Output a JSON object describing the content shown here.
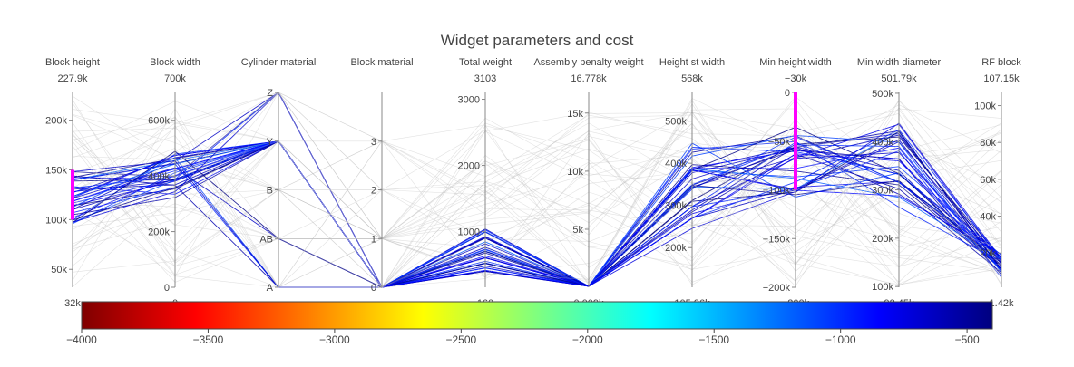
{
  "chart_data": {
    "type": "parallel-coordinates",
    "title": "Widget parameters and cost",
    "colorscale": {
      "name": "Jet (reversed)",
      "range": [
        -4000,
        -400
      ],
      "ticks": [
        -4000,
        -3500,
        -3000,
        -2500,
        -2000,
        -1500,
        -1000,
        -500
      ],
      "tick_labels": [
        "−4000",
        "−3500",
        "−3000",
        "−2500",
        "−2000",
        "−1500",
        "−1000",
        "−500"
      ],
      "stops": [
        "#7f0000",
        "#ff0000",
        "#ff7f00",
        "#ffff00",
        "#7fff7f",
        "#00ffff",
        "#007fff",
        "#0000ff",
        "#00007f"
      ]
    },
    "dimensions": [
      {
        "label": "Block height",
        "range": [
          32000,
          227900
        ],
        "range_labels": [
          "32k",
          "227.9k"
        ],
        "ticks": [
          50000,
          100000,
          150000,
          200000
        ],
        "tick_labels": [
          "50k",
          "100k",
          "150k",
          "200k"
        ],
        "constraint": [
          100000,
          150000
        ]
      },
      {
        "label": "Block width",
        "range": [
          0,
          700000
        ],
        "range_labels": [
          "0",
          "700k"
        ],
        "ticks": [
          0,
          200000,
          400000,
          600000
        ],
        "tick_labels": [
          "0",
          "200k",
          "400k",
          "600k"
        ]
      },
      {
        "label": "Cylinder material",
        "range": [
          0,
          4
        ],
        "range_labels": [
          "",
          ""
        ],
        "ticks": [
          0,
          1,
          2,
          3,
          4
        ],
        "tick_labels": [
          "A",
          "AB",
          "B",
          "Y",
          "Z"
        ]
      },
      {
        "label": "Block material",
        "range": [
          0,
          4
        ],
        "range_labels": [
          "",
          ""
        ],
        "ticks": [
          0,
          1,
          2,
          3
        ],
        "tick_labels": [
          "0",
          "1",
          "2",
          "3"
        ]
      },
      {
        "label": "Total weight",
        "range": [
          160,
          3103
        ],
        "range_labels": [
          "160",
          "3103"
        ],
        "ticks": [
          1000,
          2000,
          3000
        ],
        "tick_labels": [
          "1000",
          "2000",
          "3000"
        ]
      },
      {
        "label": "Assembly penalty weight",
        "range": [
          9,
          16778
        ],
        "range_labels": [
          "0.009k",
          "16.778k"
        ],
        "ticks": [
          5000,
          10000,
          15000
        ],
        "tick_labels": [
          "5k",
          "10k",
          "15k"
        ]
      },
      {
        "label": "Height st width",
        "range": [
          105960,
          568000
        ],
        "range_labels": [
          "105.96k",
          "568k"
        ],
        "ticks": [
          200000,
          300000,
          400000,
          500000
        ],
        "tick_labels": [
          "200k",
          "300k",
          "400k",
          "500k"
        ]
      },
      {
        "label": "Min height width",
        "range": [
          -200000,
          -30000
        ],
        "range_labels": [
          "−200k",
          "−30k"
        ],
        "ticks": [
          0,
          -50000,
          -100000,
          -150000,
          -200000
        ],
        "tick_labels": [
          "0",
          "−50k",
          "−100k",
          "−150k",
          "−200k"
        ],
        "axis_min": -200000,
        "axis_max": 0,
        "constraint": [
          -100000,
          0
        ]
      },
      {
        "label": "Min width diameter",
        "range": [
          98450,
          501790
        ],
        "range_labels": [
          "98.45k",
          "501.79k"
        ],
        "ticks": [
          100000,
          200000,
          300000,
          400000,
          500000
        ],
        "tick_labels": [
          "100k",
          "200k",
          "300k",
          "400k",
          "500k"
        ]
      },
      {
        "label": "RF block",
        "range": [
          1420,
          107150
        ],
        "range_labels": [
          "1.42k",
          "107.15k"
        ],
        "ticks": [
          20000,
          40000,
          60000,
          80000,
          100000
        ],
        "tick_labels": [
          "20k",
          "40k",
          "60k",
          "80k",
          "100k"
        ]
      }
    ],
    "line_count": 80
  }
}
